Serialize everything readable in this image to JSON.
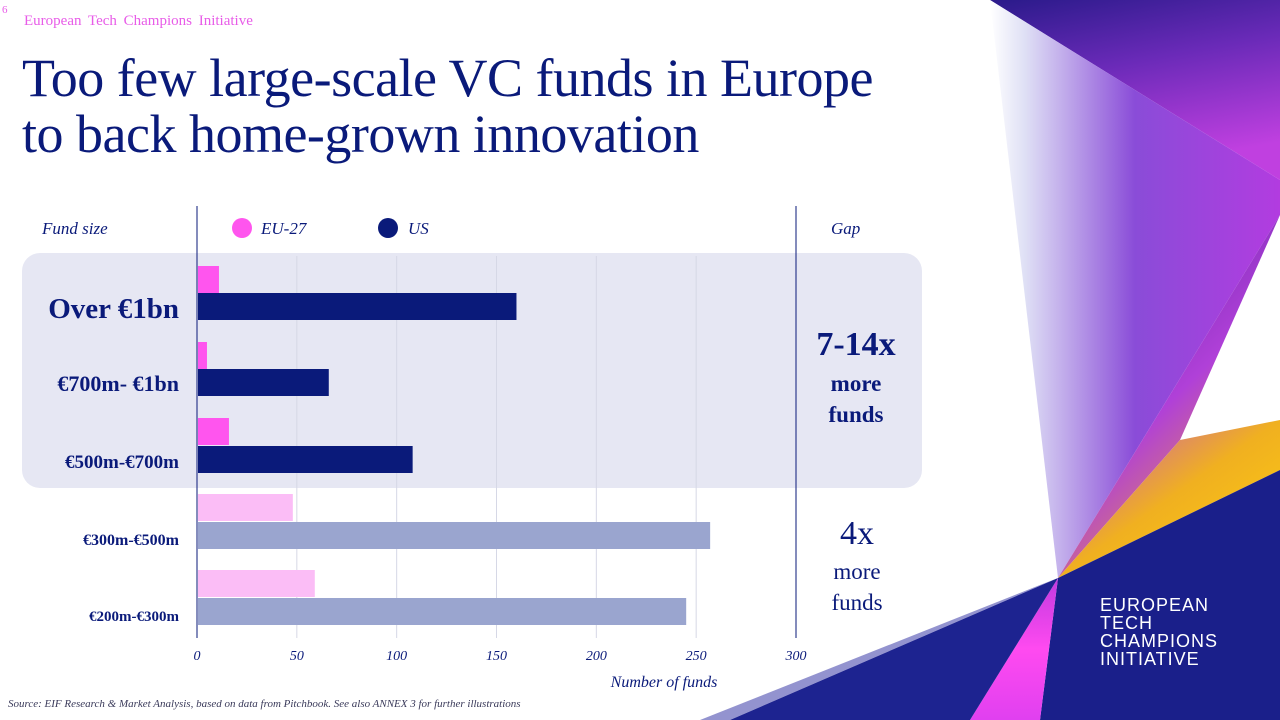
{
  "header": {
    "page_number": "6",
    "tag": "European Tech Champions Initiative",
    "title_line1": "Too few large-scale VC funds in Europe",
    "title_line2": "to back home-grown innovation"
  },
  "colors": {
    "navy": "#0a1a7a",
    "pink": "#ff55ee",
    "pink_light": "#fbbdf6",
    "slate": "#9aa5cf",
    "panel": "#e6e7f3"
  },
  "chart_data": {
    "type": "bar",
    "orientation": "horizontal",
    "category_header": "Fund size",
    "gap_header": "Gap",
    "xlabel": "Number of funds",
    "xlim": [
      0,
      300
    ],
    "x_ticks": [
      0,
      50,
      100,
      150,
      200,
      250,
      300
    ],
    "grid": true,
    "legend": [
      {
        "label": "EU-27",
        "color": "#ff55ee"
      },
      {
        "label": "US",
        "color": "#0a1a7a"
      }
    ],
    "categories": [
      "Over €1bn",
      "€700m- €1bn",
      "€500m-€700m",
      "€300m-€500m",
      "€200m-€300m"
    ],
    "series": [
      {
        "name": "EU-27",
        "values": [
          11,
          5,
          16,
          48,
          59
        ]
      },
      {
        "name": "US",
        "values": [
          160,
          66,
          108,
          257,
          245
        ]
      }
    ],
    "annotations": [
      {
        "group": "large",
        "categories": [
          "Over €1bn",
          "€700m- €1bn",
          "€500m-€700m"
        ],
        "ratio": "7-14x",
        "line1": "more",
        "line2": "funds"
      },
      {
        "group": "mid",
        "categories": [
          "€300m-€500m",
          "€200m-€300m"
        ],
        "ratio": "4x",
        "line1": "more",
        "line2": "funds"
      }
    ]
  },
  "logo": {
    "line1": "EUROPEAN",
    "line2": "TECH",
    "line3": "CHAMPIONS",
    "line4": "INITIATIVE"
  },
  "footer": {
    "source": "Source: EIF Research & Market Analysis, based on data from Pitchbook. See also ANNEX 3 for further illustrations"
  }
}
